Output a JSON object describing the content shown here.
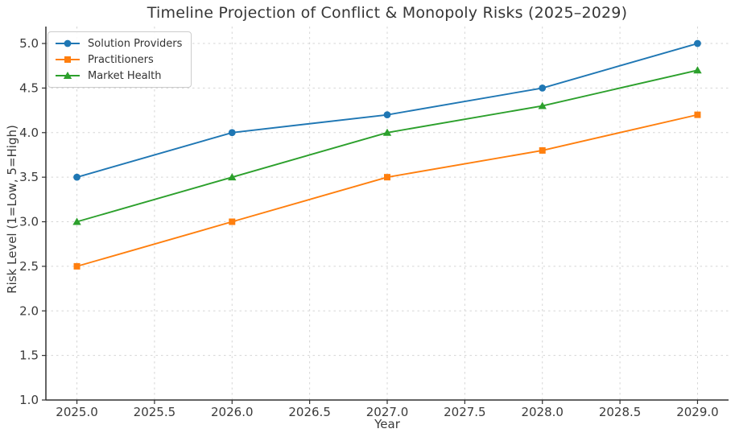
{
  "chart_data": {
    "type": "line",
    "title": "Timeline Projection of Conflict & Monopoly Risks (2025–2029)",
    "xlabel": "Year",
    "ylabel": "Risk Level (1=Low, 5=High)",
    "x": [
      2025,
      2026,
      2027,
      2028,
      2029
    ],
    "series": [
      {
        "name": "Solution Providers",
        "color": "#1f77b4",
        "marker": "circle",
        "values": [
          3.5,
          4.0,
          4.2,
          4.5,
          5.0
        ]
      },
      {
        "name": "Practitioners",
        "color": "#ff7f0e",
        "marker": "square",
        "values": [
          2.5,
          3.0,
          3.5,
          3.8,
          4.2
        ]
      },
      {
        "name": "Market Health",
        "color": "#2ca02c",
        "marker": "triangle",
        "values": [
          3.0,
          3.5,
          4.0,
          4.3,
          4.7
        ]
      }
    ],
    "x_ticks": [
      "2025.0",
      "2025.5",
      "2026.0",
      "2026.5",
      "2027.0",
      "2027.5",
      "2028.0",
      "2028.5",
      "2029.0"
    ],
    "y_ticks": [
      "1.0",
      "1.5",
      "2.0",
      "2.5",
      "3.0",
      "3.5",
      "4.0",
      "4.5",
      "5.0"
    ],
    "xlim": [
      2024.8,
      2029.2
    ],
    "ylim": [
      1.0,
      5.19
    ],
    "grid": true,
    "grid_style": "dashed",
    "legend_position": "upper left",
    "colors": {
      "background": "#ffffff",
      "grid": "#d5d5d5",
      "spine": "#303030",
      "text": "#3a3a3a"
    }
  }
}
